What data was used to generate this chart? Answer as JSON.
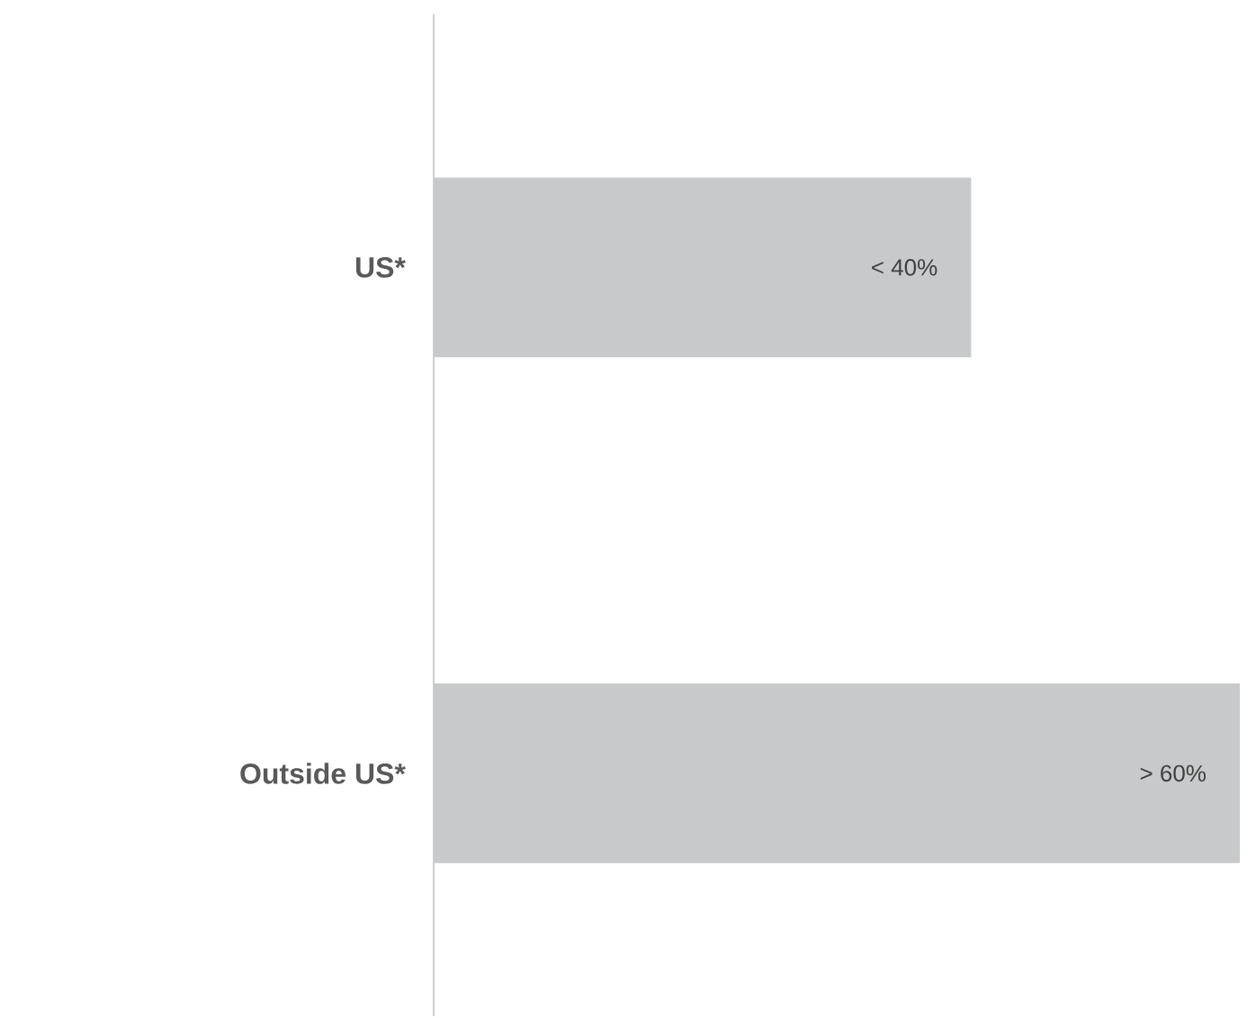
{
  "chart_data": {
    "type": "bar",
    "orientation": "horizontal",
    "categories": [
      "US*",
      "Outside US*"
    ],
    "values": [
      40,
      60
    ],
    "value_labels": [
      "< 40%",
      "> 60%"
    ],
    "color": "#c8c9ca"
  }
}
